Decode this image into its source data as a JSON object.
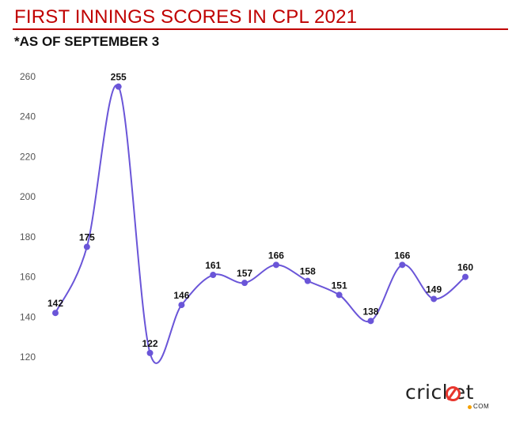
{
  "header": {
    "title": "FIRST INNINGS SCORES IN CPL 2021",
    "subtitle": "*AS OF SEPTEMBER 3"
  },
  "logo": {
    "text": "cricket",
    "suffix": "COM"
  },
  "colors": {
    "title": "#c00000",
    "line": "#6a55d8",
    "point": "#6a55d8",
    "axis_text": "#555555",
    "label_text": "#111111"
  },
  "chart_data": {
    "type": "line",
    "x": [
      1,
      2,
      3,
      4,
      5,
      6,
      7,
      8,
      9,
      10,
      11,
      12,
      13,
      14
    ],
    "series": [
      {
        "values": [
          142,
          175,
          255,
          122,
          146,
          161,
          157,
          166,
          158,
          151,
          138,
          166,
          149,
          160
        ]
      }
    ],
    "ylim": [
      120,
      260
    ],
    "yticks": [
      120,
      140,
      160,
      180,
      200,
      220,
      240,
      260
    ],
    "grid": false,
    "data_labels": true,
    "title": "FIRST INNINGS SCORES IN CPL 2021",
    "subtitle": "*AS OF SEPTEMBER 3",
    "xlabel": "",
    "ylabel": ""
  }
}
